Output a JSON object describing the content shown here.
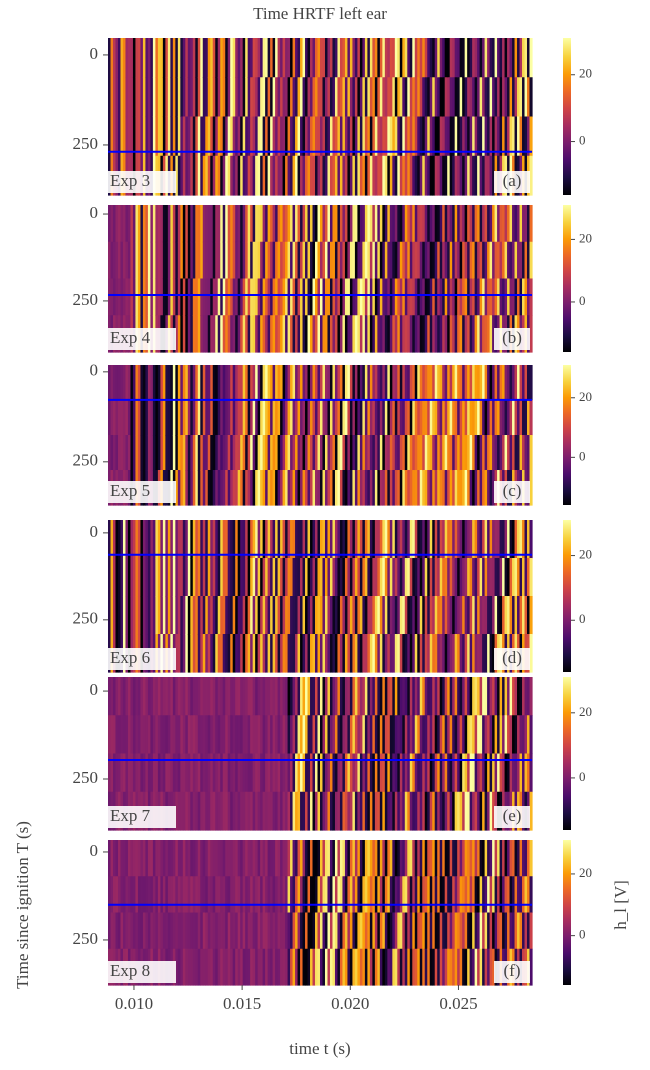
{
  "figure": {
    "title": "Time HRTF left ear",
    "ylabel": "Time since ignition T (s)",
    "xlabel": "time t (s)",
    "colorbar_label": "h_l [V]"
  },
  "chart_data": [
    {
      "type": "heatmap",
      "label": "Exp 3",
      "panel_label": "(a)",
      "xlim": [
        0.0088,
        0.0284
      ],
      "ylim": [
        -47,
        389
      ],
      "yticks": [
        0,
        250
      ],
      "line_value": 269,
      "line_color": "#0000ff",
      "clim": [
        -16,
        31
      ],
      "cticks": [
        0,
        20
      ]
    },
    {
      "type": "heatmap",
      "label": "Exp 4",
      "panel_label": "(b)",
      "xlim": [
        0.0088,
        0.0284
      ],
      "ylim": [
        -26,
        397
      ],
      "yticks": [
        0,
        250
      ],
      "line_value": 233,
      "line_color": "#0000ff",
      "clim": [
        -16,
        31
      ],
      "cticks": [
        0,
        20
      ]
    },
    {
      "type": "heatmap",
      "label": "Exp 5",
      "panel_label": "(c)",
      "xlim": [
        0.0088,
        0.0284
      ],
      "ylim": [
        -19,
        370
      ],
      "yticks": [
        0,
        250
      ],
      "line_value": 78,
      "line_color": "#0000ff",
      "clim": [
        -16,
        31
      ],
      "cticks": [
        0,
        20
      ]
    },
    {
      "type": "heatmap",
      "label": "Exp 6",
      "panel_label": "(d)",
      "xlim": [
        0.0088,
        0.0284
      ],
      "ylim": [
        -37,
        400
      ],
      "yticks": [
        0,
        250
      ],
      "line_value": 63,
      "line_color": "#0000ff",
      "clim": [
        -16,
        31
      ],
      "cticks": [
        0,
        20
      ]
    },
    {
      "type": "heatmap",
      "label": "Exp 7",
      "panel_label": "(e)",
      "xlim": [
        0.0088,
        0.0284
      ],
      "ylim": [
        -40,
        395
      ],
      "yticks": [
        0,
        250
      ],
      "line_value": 196,
      "line_color": "#0000ff",
      "clim": [
        -16,
        31
      ],
      "cticks": [
        0,
        20
      ]
    },
    {
      "type": "heatmap",
      "label": "Exp 8",
      "panel_label": "(f)",
      "xlim": [
        0.0088,
        0.0284
      ],
      "ylim": [
        -34,
        378
      ],
      "yticks": [
        0,
        250
      ],
      "line_value": 150,
      "line_color": "#0000ff",
      "clim": [
        -16,
        31
      ],
      "cticks": [
        0,
        20
      ],
      "xticks": [
        {
          "value": 0.01,
          "label": "0.010"
        },
        0.015,
        {
          "value": 0.02,
          "label": "0.020"
        },
        0.025
      ]
    }
  ]
}
